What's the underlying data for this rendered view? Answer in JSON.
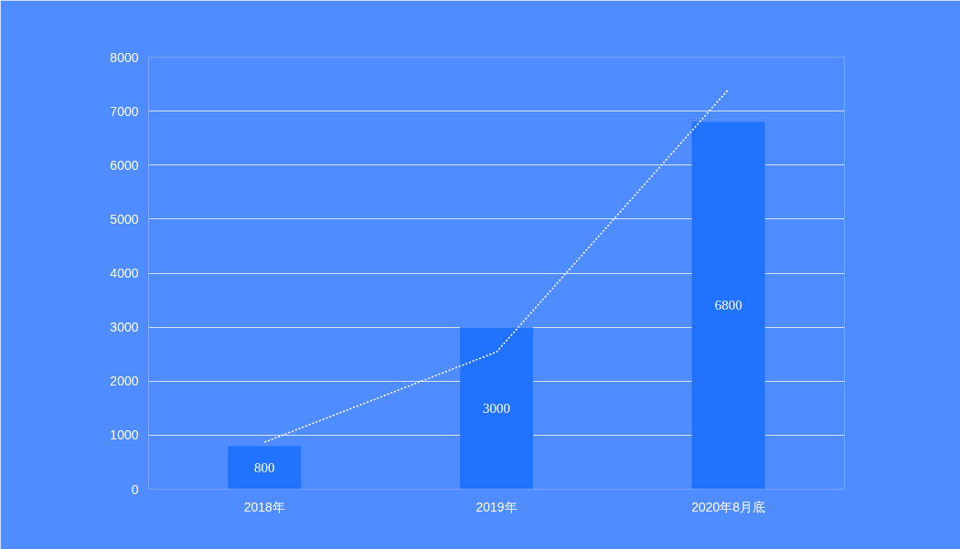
{
  "chart_data": {
    "type": "bar",
    "categories": [
      "2018年",
      "2019年",
      "2020年8月底"
    ],
    "series": [
      {
        "color": "#2173ff",
        "values": [
          800,
          3000,
          6800
        ],
        "value_labels": [
          "800",
          "3000",
          "6800"
        ]
      },
      {
        "type": "line",
        "color": "#ffffff",
        "line_style": "dotted",
        "values": [
          870,
          2540,
          7400
        ]
      }
    ],
    "ylim": [
      0,
      8000
    ],
    "yticks": [
      0,
      1000,
      2000,
      3000,
      4000,
      5000,
      6000,
      7000,
      8000
    ],
    "grid": "y"
  }
}
